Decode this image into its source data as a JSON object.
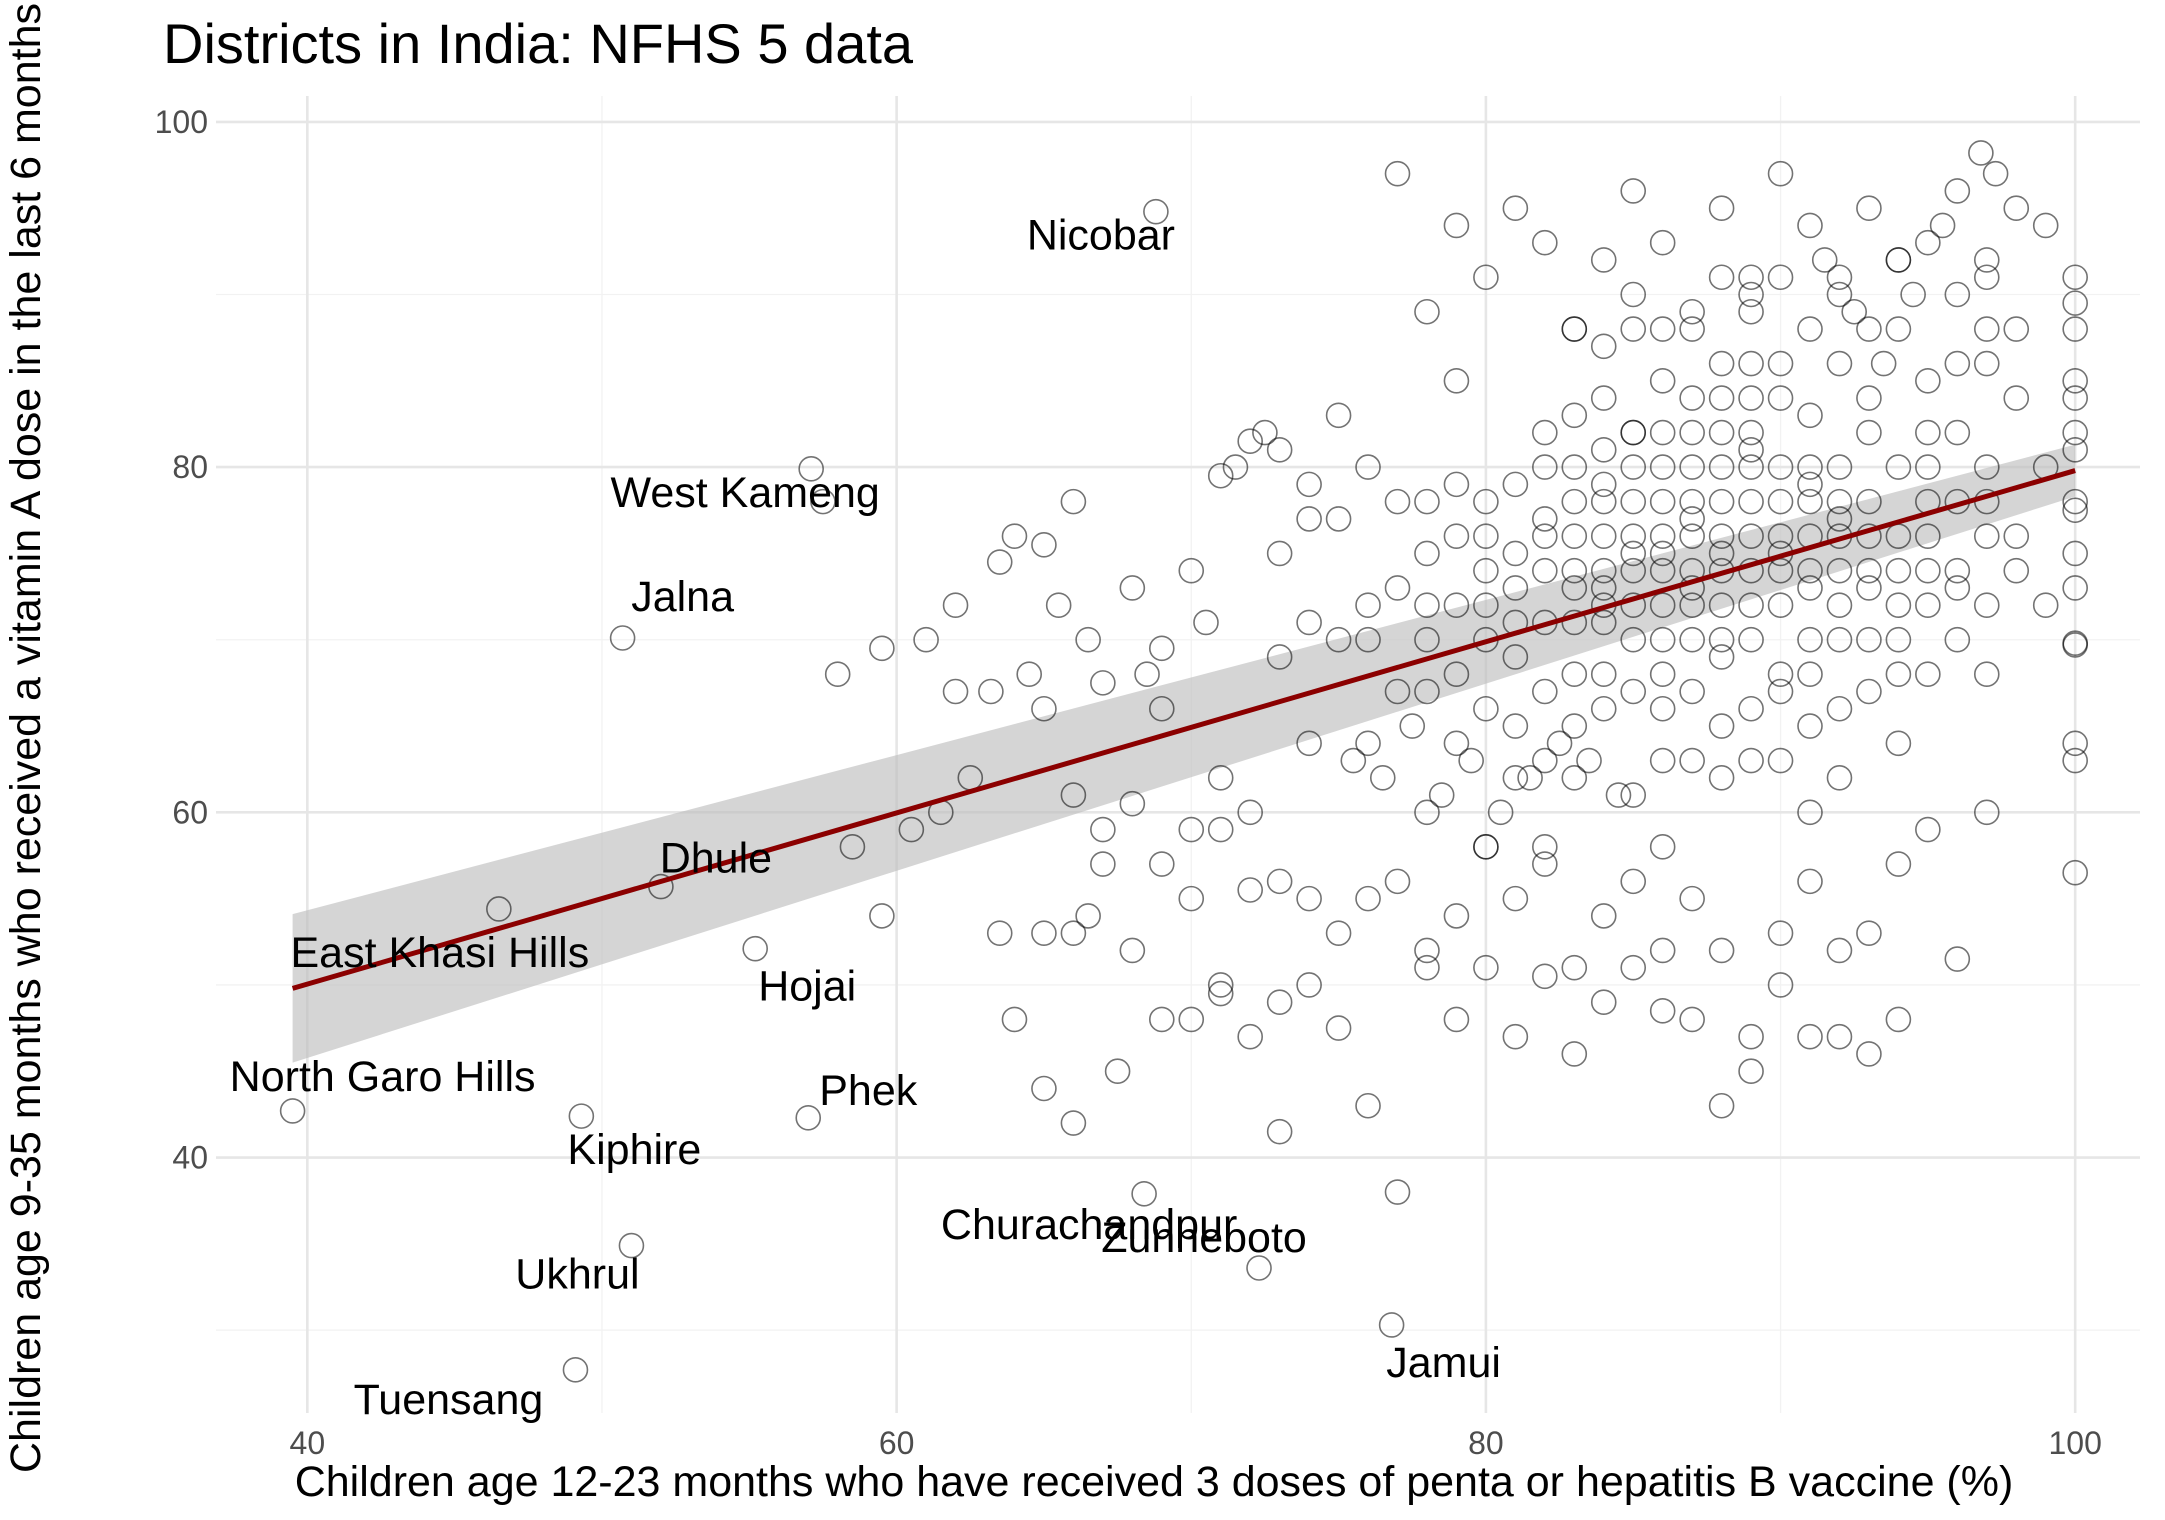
{
  "chart_data": {
    "type": "scatter",
    "title": "Districts in India: NFHS 5 data",
    "xlabel": "Children age 12-23 months who have received 3 doses of penta or hepatitis B vaccine (%)",
    "ylabel": "Children age 9-35 months who received a vitamin A dose in the last 6 months",
    "xlim": [
      36.9,
      102.2
    ],
    "ylim": [
      25.2,
      101.5
    ],
    "x_ticks": [
      40,
      60,
      80,
      100
    ],
    "y_ticks": [
      40,
      60,
      80,
      100
    ],
    "x_tick_labels": [
      "40",
      "60",
      "80",
      "100"
    ],
    "y_tick_labels": [
      "40",
      "60",
      "80",
      "100"
    ],
    "grid": true,
    "marker": "open-circle",
    "point_color": "#000000",
    "fit": {
      "method": "linear",
      "color": "#8b0000",
      "band_color": "#bfbfbf",
      "x": [
        39.5,
        100
      ],
      "y": [
        49.8,
        79.8
      ],
      "band_lower": [
        45.5,
        78.3
      ],
      "band_upper": [
        54.1,
        81.3
      ]
    },
    "labeled_points": [
      {
        "name": "Nicobar",
        "x": 68.8,
        "y": 94.8
      },
      {
        "name": "West Kameng",
        "x": 57.1,
        "y": 79.9
      },
      {
        "name": "Jalna",
        "x": 50.7,
        "y": 70.1
      },
      {
        "name": "Dhule",
        "x": 52.0,
        "y": 55.7
      },
      {
        "name": "East Khasi Hills",
        "x": 46.5,
        "y": 54.4
      },
      {
        "name": "Hojai",
        "x": 55.2,
        "y": 52.1
      },
      {
        "name": "North Garo Hills",
        "x": 39.5,
        "y": 42.7
      },
      {
        "name": "Phek",
        "x": 57.0,
        "y": 42.3
      },
      {
        "name": "Kiphire",
        "x": 49.3,
        "y": 42.4
      },
      {
        "name": "Churachandpur",
        "x": 68.4,
        "y": 37.9
      },
      {
        "name": "Ukhrul",
        "x": 51.0,
        "y": 34.9
      },
      {
        "name": "Zunheboto",
        "x": 72.3,
        "y": 33.6
      },
      {
        "name": "Jamui",
        "x": 76.8,
        "y": 30.3
      },
      {
        "name": "Tuensang",
        "x": 49.1,
        "y": 27.7
      }
    ],
    "points": [
      [
        62,
        72
      ],
      [
        88,
        91
      ],
      [
        85,
        82
      ],
      [
        78,
        70
      ],
      [
        92,
        77
      ],
      [
        69,
        66
      ],
      [
        97,
        86
      ],
      [
        84,
        71
      ],
      [
        79,
        64
      ],
      [
        94,
        70
      ],
      [
        81,
        73
      ],
      [
        89,
        89
      ],
      [
        86,
        63
      ],
      [
        73,
        81
      ],
      [
        94,
        92
      ],
      [
        87,
        77
      ],
      [
        83,
        62
      ],
      [
        97,
        68
      ],
      [
        76,
        72
      ],
      [
        90,
        80
      ],
      [
        91,
        83
      ],
      [
        98,
        76
      ],
      [
        82,
        58
      ],
      [
        71,
        62
      ],
      [
        100,
        82
      ],
      [
        85,
        75
      ],
      [
        96,
        74
      ],
      [
        79,
        85
      ],
      [
        88,
        69
      ],
      [
        93,
        88
      ],
      [
        91,
        73
      ],
      [
        74,
        71
      ],
      [
        83,
        76
      ],
      [
        80,
        58
      ],
      [
        89,
        90
      ],
      [
        65,
        66
      ],
      [
        96,
        90
      ],
      [
        87,
        82
      ],
      [
        84,
        87
      ],
      [
        92,
        62
      ],
      [
        90,
        91
      ],
      [
        77,
        78
      ],
      [
        95,
        78
      ],
      [
        86,
        68
      ],
      [
        93,
        82
      ],
      [
        99,
        72
      ],
      [
        85,
        90
      ],
      [
        81,
        79
      ],
      [
        78,
        60
      ],
      [
        88,
        75
      ],
      [
        82,
        71
      ],
      [
        94,
        68
      ],
      [
        89,
        74
      ],
      [
        97,
        92
      ],
      [
        76,
        64
      ],
      [
        84,
        79
      ],
      [
        91,
        60
      ],
      [
        86,
        85
      ],
      [
        73,
        69
      ],
      [
        80,
        76
      ],
      [
        95,
        72
      ],
      [
        87,
        67
      ],
      [
        92,
        86
      ],
      [
        83,
        83
      ],
      [
        70,
        59
      ],
      [
        89,
        63
      ],
      [
        96,
        82
      ],
      [
        85,
        61
      ],
      [
        79,
        72
      ],
      [
        93,
        76
      ],
      [
        88,
        84
      ],
      [
        74,
        77
      ],
      [
        90,
        67
      ],
      [
        82,
        82
      ],
      [
        98,
        88
      ],
      [
        84,
        66
      ],
      [
        91,
        79
      ],
      [
        77,
        67
      ],
      [
        86,
        72
      ],
      [
        94,
        80
      ],
      [
        81,
        65
      ],
      [
        89,
        78
      ],
      [
        75,
        83
      ],
      [
        92,
        70
      ],
      [
        87,
        88
      ],
      [
        83,
        73
      ],
      [
        97,
        78
      ],
      [
        80,
        70
      ],
      [
        85,
        80
      ],
      [
        90,
        86
      ],
      [
        78,
        75
      ],
      [
        94,
        64
      ],
      [
        88,
        78
      ],
      [
        72,
        60
      ],
      [
        96,
        73
      ],
      [
        84,
        76
      ],
      [
        91,
        88
      ],
      [
        86,
        58
      ],
      [
        82,
        67
      ],
      [
        93,
        67
      ],
      [
        89,
        81
      ],
      [
        79,
        79
      ],
      [
        95,
        85
      ],
      [
        87,
        73
      ],
      [
        83,
        88
      ],
      [
        99,
        80
      ],
      [
        81,
        62
      ],
      [
        90,
        75
      ],
      [
        85,
        70
      ],
      [
        92,
        91
      ],
      [
        76,
        80
      ],
      [
        88,
        65
      ],
      [
        94,
        76
      ],
      [
        86,
        78
      ],
      [
        80,
        66
      ],
      [
        97,
        72
      ],
      [
        84,
        84
      ],
      [
        91,
        68
      ],
      [
        89,
        86
      ],
      [
        83,
        65
      ],
      [
        93,
        73
      ],
      [
        78,
        67
      ],
      [
        87,
        63
      ],
      [
        95,
        68
      ],
      [
        82,
        77
      ],
      [
        90,
        72
      ],
      [
        86,
        88
      ],
      [
        98,
        74
      ],
      [
        81,
        75
      ],
      [
        88,
        82
      ],
      [
        73,
        75
      ],
      [
        92,
        66
      ],
      [
        85,
        67
      ],
      [
        96,
        70
      ],
      [
        84,
        73
      ],
      [
        89,
        70
      ],
      [
        79,
        68
      ],
      [
        94,
        88
      ],
      [
        87,
        80
      ],
      [
        91,
        76
      ],
      [
        83,
        68
      ],
      [
        97,
        88
      ],
      [
        80,
        74
      ],
      [
        86,
        82
      ],
      [
        90,
        63
      ],
      [
        77,
        73
      ],
      [
        93,
        78
      ],
      [
        88,
        72
      ],
      [
        85,
        88
      ],
      [
        95,
        82
      ],
      [
        82,
        63
      ],
      [
        89,
        66
      ],
      [
        75,
        70
      ],
      [
        92,
        80
      ],
      [
        87,
        70
      ],
      [
        84,
        81
      ],
      [
        98,
        84
      ],
      [
        81,
        69
      ],
      [
        90,
        78
      ],
      [
        86,
        75
      ],
      [
        94,
        74
      ],
      [
        78,
        72
      ],
      [
        88,
        62
      ],
      [
        83,
        78
      ],
      [
        96,
        78
      ],
      [
        91,
        65
      ],
      [
        85,
        72
      ],
      [
        80,
        78
      ],
      [
        93,
        70
      ],
      [
        87,
        76
      ],
      [
        89,
        84
      ],
      [
        82,
        74
      ],
      [
        95,
        76
      ],
      [
        76,
        70
      ],
      [
        84,
        68
      ],
      [
        90,
        84
      ],
      [
        86,
        66
      ],
      [
        92,
        74
      ],
      [
        79,
        76
      ],
      [
        97,
        80
      ],
      [
        88,
        76
      ],
      [
        83,
        71
      ],
      [
        74,
        64
      ],
      [
        91,
        70
      ],
      [
        85,
        78
      ],
      [
        94,
        72
      ],
      [
        87,
        84
      ],
      [
        81,
        71
      ],
      [
        89,
        76
      ],
      [
        96,
        86
      ],
      [
        82,
        80
      ],
      [
        93,
        84
      ],
      [
        78,
        78
      ],
      [
        86,
        70
      ],
      [
        90,
        68
      ],
      [
        84,
        78
      ],
      [
        88,
        86
      ],
      [
        92,
        72
      ],
      [
        80,
        72
      ],
      [
        95,
        74
      ],
      [
        87,
        74
      ],
      [
        83,
        80
      ],
      [
        91,
        74
      ],
      [
        85,
        76
      ],
      [
        89,
        72
      ],
      [
        97,
        76
      ],
      [
        86,
        76
      ],
      [
        93,
        74
      ],
      [
        88,
        70
      ],
      [
        84,
        74
      ],
      [
        90,
        76
      ],
      [
        82,
        76
      ],
      [
        87,
        78
      ],
      [
        92,
        78
      ],
      [
        85,
        74
      ],
      [
        89,
        82
      ],
      [
        95,
        80
      ],
      [
        91,
        78
      ],
      [
        86,
        80
      ],
      [
        88,
        74
      ],
      [
        83,
        74
      ],
      [
        90,
        74
      ],
      [
        87,
        72
      ],
      [
        84,
        72
      ],
      [
        92,
        76
      ],
      [
        89,
        80
      ],
      [
        86,
        74
      ],
      [
        91,
        80
      ],
      [
        85,
        82
      ],
      [
        88,
        80
      ],
      [
        100,
        91
      ],
      [
        100,
        89.5
      ],
      [
        100,
        88
      ],
      [
        100,
        85
      ],
      [
        100,
        84
      ],
      [
        100,
        81
      ],
      [
        100,
        78
      ],
      [
        100,
        77.5
      ],
      [
        100,
        75
      ],
      [
        100,
        73
      ],
      [
        100,
        69.8
      ],
      [
        100,
        69.7
      ],
      [
        100,
        64
      ],
      [
        100,
        63
      ],
      [
        100,
        56.5
      ],
      [
        64,
        76
      ],
      [
        63.5,
        74.5
      ],
      [
        64.5,
        68
      ],
      [
        63.2,
        67
      ],
      [
        65,
        75.5
      ],
      [
        66,
        78
      ],
      [
        67,
        67.5
      ],
      [
        66.5,
        70
      ],
      [
        65.5,
        72
      ],
      [
        68,
        73
      ],
      [
        70,
        74
      ],
      [
        71,
        79.5
      ],
      [
        71.5,
        80
      ],
      [
        72,
        81.5
      ],
      [
        72.5,
        82
      ],
      [
        69,
        69.5
      ],
      [
        68.5,
        68
      ],
      [
        70.5,
        71
      ],
      [
        74,
        79
      ],
      [
        75,
        77
      ],
      [
        66,
        61
      ],
      [
        67,
        59
      ],
      [
        66.5,
        54
      ],
      [
        68,
        60.5
      ],
      [
        69,
        57
      ],
      [
        70,
        55
      ],
      [
        71,
        59
      ],
      [
        72,
        55.5
      ],
      [
        73,
        56
      ],
      [
        74,
        55
      ],
      [
        65,
        53
      ],
      [
        66,
        53
      ],
      [
        67,
        57
      ],
      [
        68,
        52
      ],
      [
        69,
        48
      ],
      [
        70,
        48
      ],
      [
        71,
        50
      ],
      [
        72,
        47
      ],
      [
        73,
        49
      ],
      [
        74,
        50
      ],
      [
        75,
        53
      ],
      [
        76,
        55
      ],
      [
        77,
        56
      ],
      [
        78,
        51
      ],
      [
        79,
        48
      ],
      [
        80,
        51
      ],
      [
        81,
        47
      ],
      [
        82,
        50.5
      ],
      [
        83,
        46
      ],
      [
        84,
        49
      ],
      [
        85,
        51
      ],
      [
        86,
        48.5
      ],
      [
        87,
        48
      ],
      [
        88,
        52
      ],
      [
        89,
        47
      ],
      [
        90,
        50
      ],
      [
        91,
        47
      ],
      [
        92,
        52
      ],
      [
        93,
        46
      ],
      [
        94,
        48
      ],
      [
        62,
        67
      ],
      [
        61,
        70
      ],
      [
        58,
        68
      ],
      [
        59.5,
        69.5
      ],
      [
        57.5,
        78
      ],
      [
        58.5,
        58
      ],
      [
        59.5,
        54
      ],
      [
        60.5,
        59
      ],
      [
        61.5,
        60
      ],
      [
        62.5,
        62
      ],
      [
        64,
        48
      ],
      [
        63.5,
        53
      ],
      [
        65,
        44
      ],
      [
        66,
        42
      ],
      [
        67.5,
        45
      ],
      [
        71,
        49.5
      ],
      [
        73,
        41.5
      ],
      [
        75,
        47.5
      ],
      [
        76,
        43
      ],
      [
        77,
        38
      ],
      [
        78,
        52
      ],
      [
        79,
        54
      ],
      [
        80,
        58
      ],
      [
        81,
        55
      ],
      [
        82,
        57
      ],
      [
        83,
        51
      ],
      [
        84,
        54
      ],
      [
        85,
        56
      ],
      [
        86,
        52
      ],
      [
        87,
        55
      ],
      [
        88,
        43
      ],
      [
        89,
        45
      ],
      [
        90,
        53
      ],
      [
        91,
        56
      ],
      [
        92,
        47
      ],
      [
        93,
        53
      ],
      [
        94,
        57
      ],
      [
        95,
        59
      ],
      [
        96,
        51.5
      ],
      [
        97,
        60
      ],
      [
        77,
        97
      ],
      [
        78,
        89
      ],
      [
        79,
        94
      ],
      [
        80,
        91
      ],
      [
        81,
        95
      ],
      [
        82,
        93
      ],
      [
        83,
        88
      ],
      [
        84,
        92
      ],
      [
        85,
        96
      ],
      [
        86,
        93
      ],
      [
        87,
        89
      ],
      [
        88,
        95
      ],
      [
        89,
        91
      ],
      [
        90,
        97
      ],
      [
        91,
        94
      ],
      [
        92,
        90
      ],
      [
        93,
        95
      ],
      [
        94,
        92
      ],
      [
        95,
        93
      ],
      [
        96,
        96
      ],
      [
        97,
        91
      ],
      [
        98,
        95
      ],
      [
        99,
        94
      ],
      [
        96.8,
        98.2
      ],
      [
        97.3,
        97
      ],
      [
        95.5,
        94
      ],
      [
        94.5,
        90
      ],
      [
        93.5,
        86
      ],
      [
        92.5,
        89
      ],
      [
        91.5,
        92
      ],
      [
        75.5,
        63
      ],
      [
        76.5,
        62
      ],
      [
        77.5,
        65
      ],
      [
        78.5,
        61
      ],
      [
        79.5,
        63
      ],
      [
        80.5,
        60
      ],
      [
        81.5,
        62
      ],
      [
        82.5,
        64
      ],
      [
        83.5,
        63
      ],
      [
        84.5,
        61
      ]
    ]
  }
}
